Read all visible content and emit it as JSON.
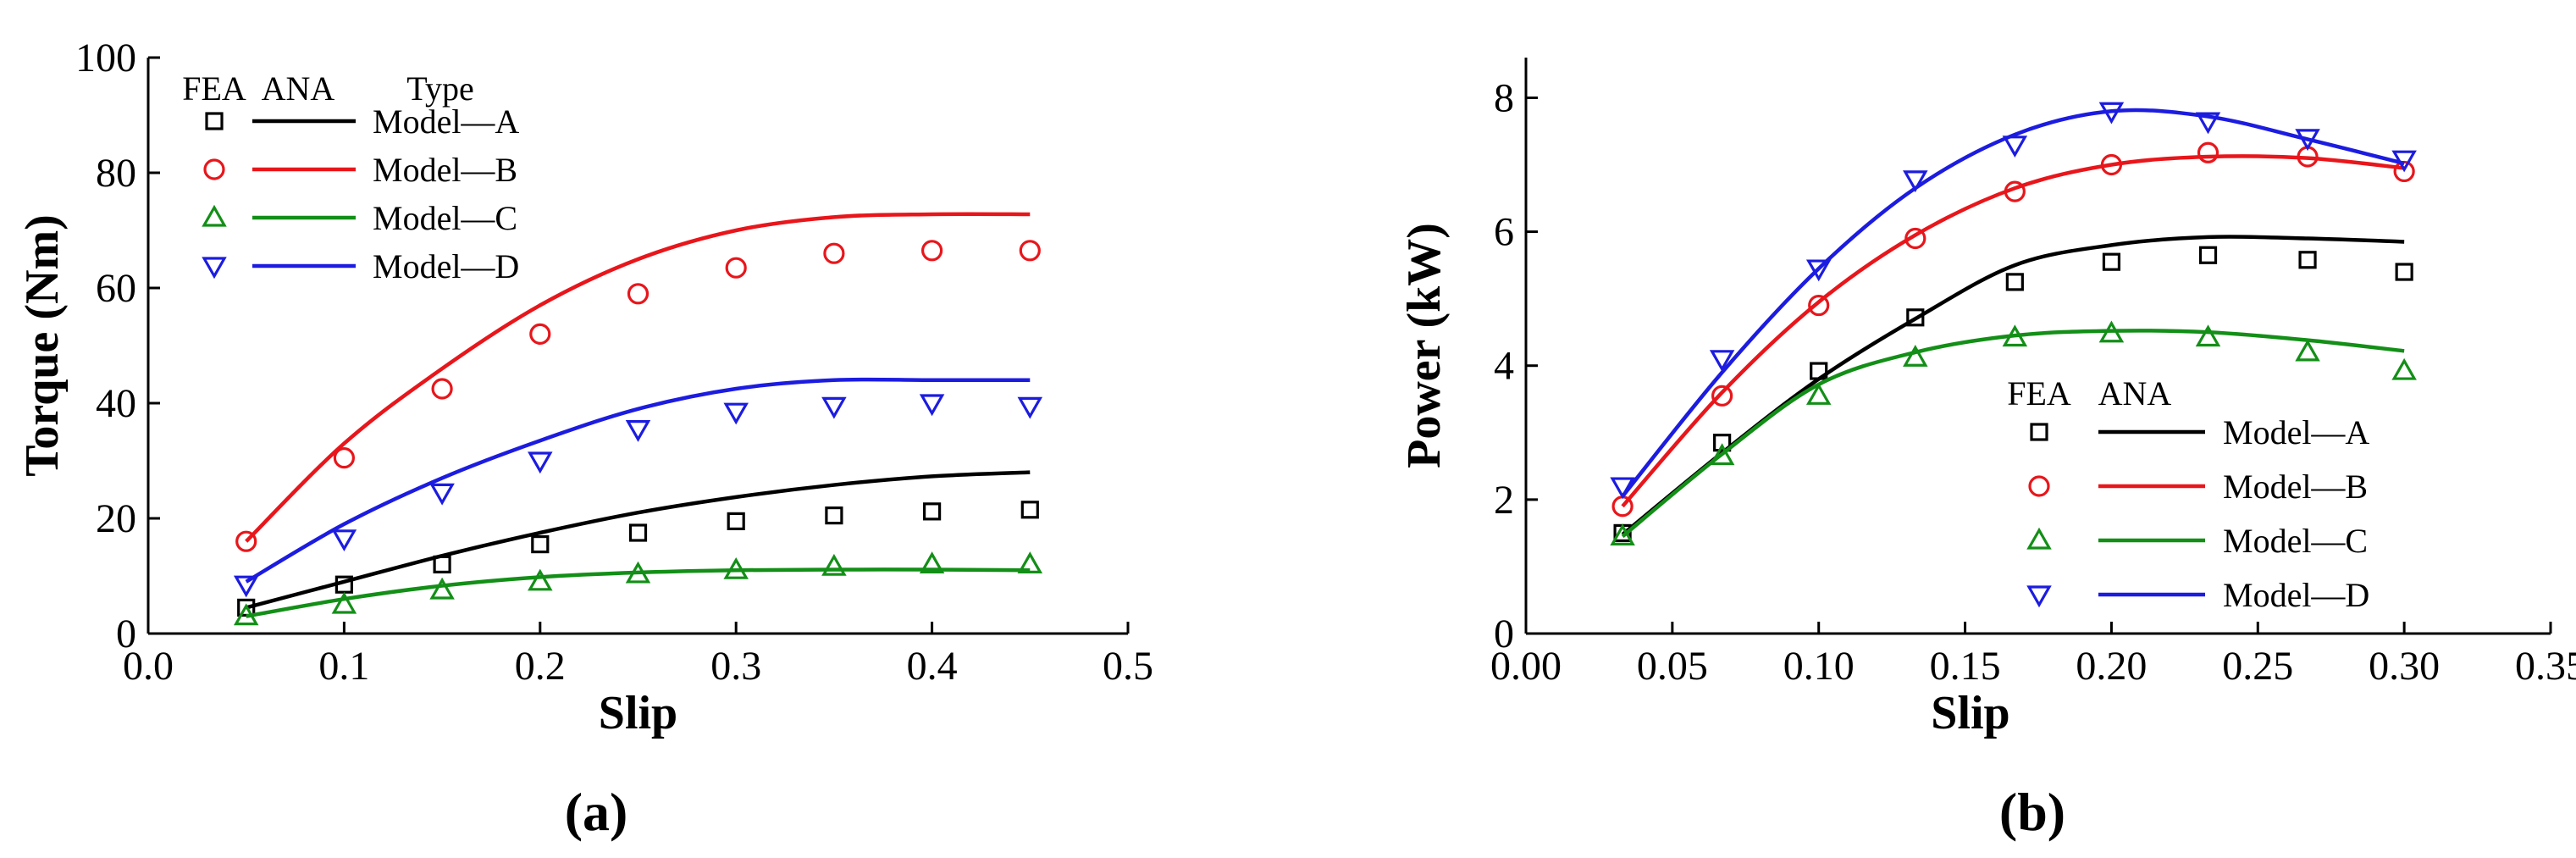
{
  "colors": {
    "Model—A": "#000000",
    "Model—B": "#e8161b",
    "Model—C": "#138f17",
    "Model—D": "#1c1ce0"
  },
  "chart_data": [
    {
      "type": "line",
      "panel_label": "(a)",
      "xlabel": "Slip",
      "ylabel": "Torque (Nm)",
      "xlim": [
        0.0,
        0.5
      ],
      "ylim": [
        0,
        100
      ],
      "xticks": [
        "0.0",
        "0.1",
        "0.2",
        "0.3",
        "0.4",
        "0.5"
      ],
      "yticks": [
        "0",
        "20",
        "40",
        "60",
        "80",
        "100"
      ],
      "legend": {
        "position": "top-left",
        "fea_header": "FEA",
        "ana_header": "ANA",
        "type_header": "Type"
      },
      "series": [
        {
          "name": "Model—A",
          "marker": "square",
          "fea_x": [
            0.05,
            0.1,
            0.15,
            0.2,
            0.25,
            0.3,
            0.35,
            0.4,
            0.45
          ],
          "fea_y": [
            4.5,
            8.5,
            12,
            15.5,
            17.5,
            19.5,
            20.5,
            21.2,
            21.5
          ],
          "ana_x": [
            0.05,
            0.1,
            0.15,
            0.2,
            0.25,
            0.3,
            0.35,
            0.4,
            0.45
          ],
          "ana_y": [
            4.5,
            9,
            13.5,
            17.5,
            21,
            23.7,
            25.8,
            27.3,
            28
          ]
        },
        {
          "name": "Model—B",
          "marker": "circle",
          "fea_x": [
            0.05,
            0.1,
            0.15,
            0.2,
            0.25,
            0.3,
            0.35,
            0.4,
            0.45
          ],
          "fea_y": [
            16,
            30.5,
            42.5,
            52,
            59,
            63.5,
            66,
            66.5,
            66.5
          ],
          "ana_x": [
            0.05,
            0.1,
            0.15,
            0.2,
            0.25,
            0.3,
            0.35,
            0.4,
            0.45
          ],
          "ana_y": [
            16,
            33,
            46,
            57,
            65,
            70,
            72.3,
            72.8,
            72.8
          ]
        },
        {
          "name": "Model—C",
          "marker": "triangle-up",
          "fea_x": [
            0.05,
            0.1,
            0.15,
            0.2,
            0.25,
            0.3,
            0.35,
            0.4,
            0.45
          ],
          "fea_y": [
            3,
            5,
            7.5,
            9,
            10.3,
            11,
            11.6,
            12,
            12
          ],
          "ana_x": [
            0.05,
            0.1,
            0.15,
            0.2,
            0.25,
            0.3,
            0.35,
            0.4,
            0.45
          ],
          "ana_y": [
            3,
            6,
            8.3,
            9.8,
            10.6,
            11,
            11.1,
            11.1,
            11
          ]
        },
        {
          "name": "Model—D",
          "marker": "triangle-down",
          "fea_x": [
            0.05,
            0.1,
            0.15,
            0.2,
            0.25,
            0.3,
            0.35,
            0.4,
            0.45
          ],
          "fea_y": [
            8.5,
            16.5,
            24.5,
            30,
            35.5,
            38.5,
            39.5,
            40,
            39.5
          ],
          "ana_x": [
            0.05,
            0.1,
            0.15,
            0.2,
            0.25,
            0.3,
            0.35,
            0.4,
            0.45
          ],
          "ana_y": [
            9,
            19,
            27,
            33.5,
            39,
            42.5,
            44,
            44,
            44
          ]
        }
      ]
    },
    {
      "type": "line",
      "panel_label": "(b)",
      "xlabel": "Slip",
      "ylabel": "Power (kW)",
      "xlim": [
        0.0,
        0.35
      ],
      "ylim": [
        0,
        8.6
      ],
      "xticks": [
        "0.00",
        "0.05",
        "0.10",
        "0.15",
        "0.20",
        "0.25",
        "0.30",
        "0.35"
      ],
      "yticks": [
        "0",
        "2",
        "4",
        "6",
        "8"
      ],
      "legend": {
        "position": "bottom-right",
        "fea_header": "FEA",
        "ana_header": "ANA"
      },
      "series": [
        {
          "name": "Model—A",
          "marker": "square",
          "fea_x": [
            0.033,
            0.067,
            0.1,
            0.133,
            0.167,
            0.2,
            0.233,
            0.267,
            0.3
          ],
          "fea_y": [
            1.5,
            2.85,
            3.92,
            4.72,
            5.25,
            5.55,
            5.65,
            5.58,
            5.4
          ],
          "ana_x": [
            0.033,
            0.067,
            0.1,
            0.133,
            0.167,
            0.2,
            0.233,
            0.267,
            0.3
          ],
          "ana_y": [
            1.48,
            2.7,
            3.8,
            4.7,
            5.5,
            5.8,
            5.92,
            5.9,
            5.85
          ]
        },
        {
          "name": "Model—B",
          "marker": "circle",
          "fea_x": [
            0.033,
            0.067,
            0.1,
            0.133,
            0.167,
            0.2,
            0.233,
            0.267,
            0.3
          ],
          "fea_y": [
            1.9,
            3.55,
            4.9,
            5.9,
            6.6,
            7.0,
            7.18,
            7.12,
            6.9
          ],
          "ana_x": [
            0.033,
            0.067,
            0.1,
            0.133,
            0.167,
            0.2,
            0.233,
            0.267,
            0.3
          ],
          "ana_y": [
            1.9,
            3.6,
            4.95,
            5.95,
            6.65,
            7.0,
            7.12,
            7.1,
            6.95
          ]
        },
        {
          "name": "Model—C",
          "marker": "triangle-up",
          "fea_x": [
            0.033,
            0.067,
            0.1,
            0.133,
            0.167,
            0.2,
            0.233,
            0.267,
            0.3
          ],
          "fea_y": [
            1.45,
            2.65,
            3.55,
            4.12,
            4.42,
            4.48,
            4.42,
            4.2,
            3.92
          ],
          "ana_x": [
            0.033,
            0.067,
            0.1,
            0.133,
            0.167,
            0.2,
            0.233,
            0.267,
            0.3
          ],
          "ana_y": [
            1.45,
            2.68,
            3.72,
            4.2,
            4.45,
            4.52,
            4.5,
            4.38,
            4.22
          ]
        },
        {
          "name": "Model—D",
          "marker": "triangle-down",
          "fea_x": [
            0.033,
            0.067,
            0.1,
            0.133,
            0.167,
            0.2,
            0.233,
            0.267,
            0.3
          ],
          "fea_y": [
            2.2,
            4.1,
            5.45,
            6.78,
            7.3,
            7.8,
            7.65,
            7.4,
            7.08
          ],
          "ana_x": [
            0.033,
            0.067,
            0.1,
            0.133,
            0.167,
            0.2,
            0.233,
            0.267,
            0.3
          ],
          "ana_y": [
            2.05,
            3.9,
            5.45,
            6.65,
            7.45,
            7.8,
            7.72,
            7.38,
            7.02
          ]
        }
      ]
    }
  ]
}
